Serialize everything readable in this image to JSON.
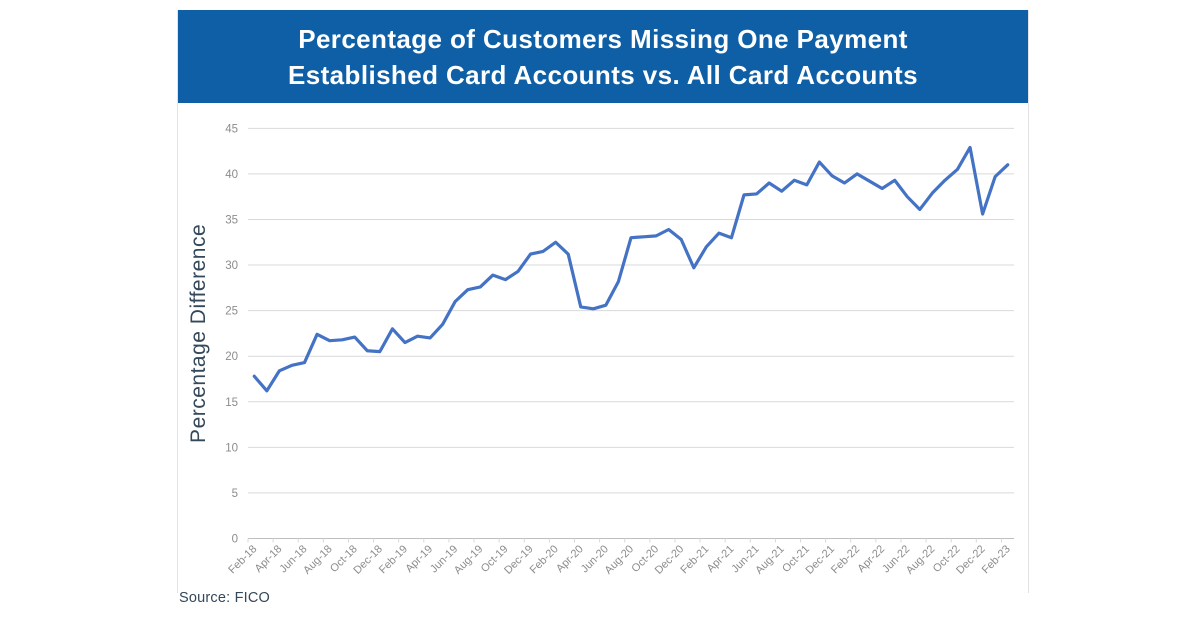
{
  "header": {
    "title_line1": "Percentage of Customers Missing One Payment",
    "title_line2": "Established Card Accounts vs. All Card Accounts"
  },
  "source": {
    "label": "Source: FICO"
  },
  "colors": {
    "header_bg": "#0E5FA5",
    "title_text": "#FFFFFF",
    "line": "#4472C4",
    "grid": "#D9D9D9",
    "axis": "#BFBFBF",
    "tick_label": "#8C8C8C",
    "axis_title": "#33485A"
  },
  "chart_data": {
    "type": "line",
    "title": "Percentage of Customers Missing One Payment — Established Card Accounts vs. All Card Accounts",
    "xlabel": "",
    "ylabel": "Percentage Difference",
    "ylim": [
      0,
      45
    ],
    "ytick_step": 5,
    "grid": true,
    "legend": "none",
    "line_color": "#4472C4",
    "series_name": "Percentage difference",
    "x": [
      "Feb-18",
      "Mar-18",
      "Apr-18",
      "May-18",
      "Jun-18",
      "Jul-18",
      "Aug-18",
      "Sep-18",
      "Oct-18",
      "Nov-18",
      "Dec-18",
      "Jan-19",
      "Feb-19",
      "Mar-19",
      "Apr-19",
      "May-19",
      "Jun-19",
      "Jul-19",
      "Aug-19",
      "Sep-19",
      "Oct-19",
      "Nov-19",
      "Dec-19",
      "Jan-20",
      "Feb-20",
      "Mar-20",
      "Apr-20",
      "May-20",
      "Jun-20",
      "Jul-20",
      "Aug-20",
      "Sep-20",
      "Oct-20",
      "Nov-20",
      "Dec-20",
      "Jan-21",
      "Feb-21",
      "Mar-21",
      "Apr-21",
      "May-21",
      "Jun-21",
      "Jul-21",
      "Aug-21",
      "Sep-21",
      "Oct-21",
      "Nov-21",
      "Dec-21",
      "Jan-22",
      "Feb-22",
      "Mar-22",
      "Apr-22",
      "May-22",
      "Jun-22",
      "Jul-22",
      "Aug-22",
      "Sep-22",
      "Oct-22",
      "Nov-22",
      "Dec-22",
      "Jan-23",
      "Feb-23"
    ],
    "values": [
      17.8,
      16.2,
      18.4,
      19.0,
      19.3,
      22.4,
      21.7,
      21.8,
      22.1,
      20.6,
      20.5,
      23.0,
      21.5,
      22.2,
      22.0,
      23.5,
      26.0,
      27.3,
      27.6,
      28.9,
      28.4,
      29.3,
      31.2,
      31.5,
      32.5,
      31.2,
      25.4,
      25.2,
      25.6,
      28.2,
      33.0,
      33.1,
      33.2,
      33.9,
      32.8,
      29.7,
      32.0,
      33.5,
      33.0,
      37.7,
      37.8,
      39.0,
      38.1,
      39.3,
      38.8,
      41.3,
      39.8,
      39.0,
      40.0,
      39.2,
      38.4,
      39.3,
      37.5,
      36.1,
      37.9,
      39.3,
      40.5,
      42.9,
      35.6,
      39.7,
      41.0
    ],
    "xtick_labels": [
      "Feb-18",
      "Apr-18",
      "Jun-18",
      "Aug-18",
      "Oct-18",
      "Dec-18",
      "Feb-19",
      "Apr-19",
      "Jun-19",
      "Aug-19",
      "Oct-19",
      "Dec-19",
      "Feb-20",
      "Apr-20",
      "Jun-20",
      "Aug-20",
      "Oct-20",
      "Dec-20",
      "Feb-21",
      "Apr-21",
      "Jun-21",
      "Aug-21",
      "Oct-21",
      "Dec-21",
      "Feb-22",
      "Apr-22",
      "Jun-22",
      "Aug-22",
      "Oct-22",
      "Dec-22",
      "Feb-23"
    ],
    "ytick_labels": [
      "0",
      "5",
      "10",
      "15",
      "20",
      "25",
      "30",
      "35",
      "40",
      "45"
    ]
  }
}
